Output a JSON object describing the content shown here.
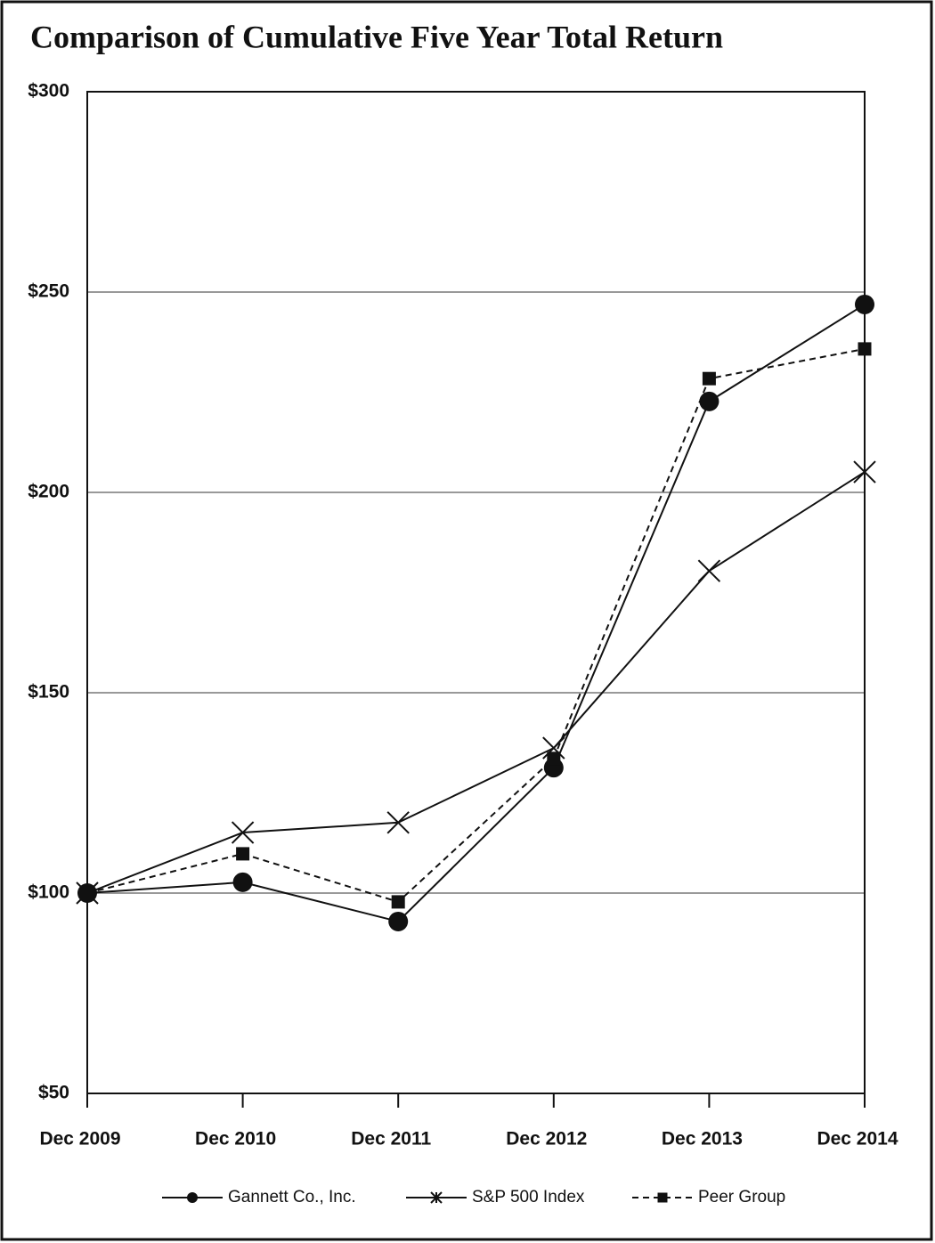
{
  "chart_data": {
    "type": "line",
    "title": "Comparison of Cumulative Five Year Total Return",
    "categories": [
      "Dec 2009",
      "Dec 2010",
      "Dec 2011",
      "Dec 2012",
      "Dec 2013",
      "Dec 2014"
    ],
    "series": [
      {
        "name": "Gannett Co., Inc.",
        "color": "#111111",
        "marker": "circle",
        "dashed": false,
        "values": [
          100,
          102.7,
          92.9,
          131.3,
          222.7,
          246.9
        ]
      },
      {
        "name": "S&P 500 Index",
        "color": "#111111",
        "marker": "x",
        "dashed": false,
        "values": [
          100,
          115.1,
          117.6,
          136.2,
          180.4,
          205.1
        ]
      },
      {
        "name": "Peer Group",
        "color": "#111111",
        "marker": "square",
        "dashed": true,
        "values": [
          100,
          109.8,
          97.8,
          133.6,
          228.4,
          235.8
        ]
      }
    ],
    "ylim": [
      50,
      300
    ],
    "yticks": [
      {
        "value": 50,
        "label": "$50"
      },
      {
        "value": 100,
        "label": "$100"
      },
      {
        "value": 150,
        "label": "$150"
      },
      {
        "value": 200,
        "label": "$200"
      },
      {
        "value": 250,
        "label": "$250"
      },
      {
        "value": 300,
        "label": "$300"
      }
    ],
    "grid": true,
    "legend": "bottom"
  }
}
